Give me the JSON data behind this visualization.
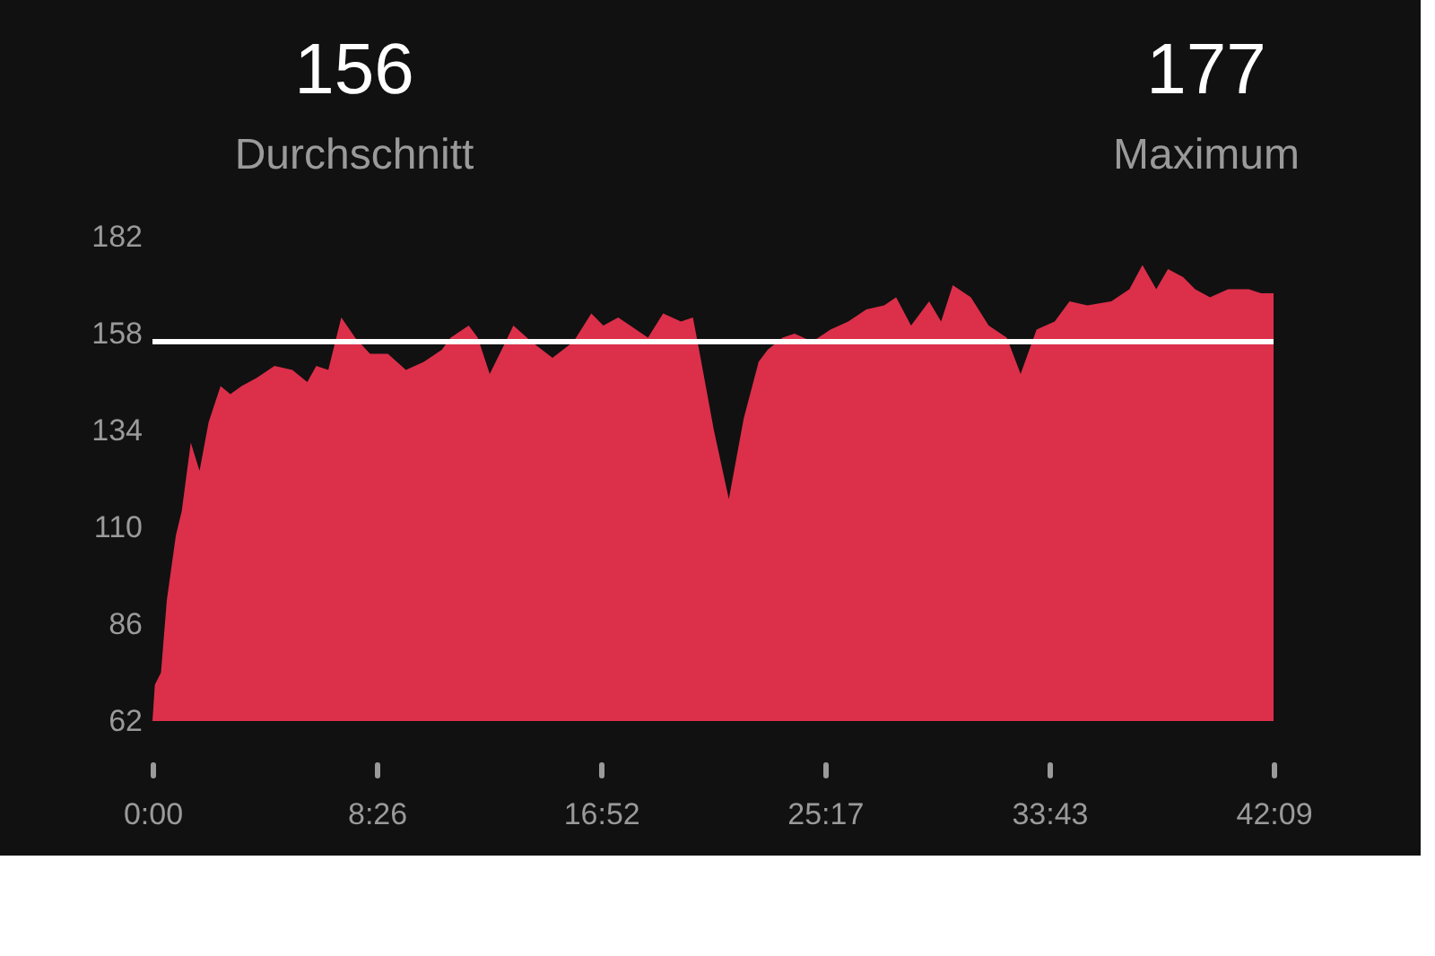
{
  "chart_data": {
    "type": "area",
    "annotations": [
      "156",
      "Durchschnitt",
      "177",
      "Maximum"
    ],
    "x": [
      0,
      0.09,
      0.32,
      0.54,
      0.88,
      1.1,
      1.44,
      1.77,
      2.11,
      2.56,
      2.93,
      3.35,
      3.91,
      4.59,
      5.26,
      5.82,
      6.16,
      6.61,
      7.1,
      7.62,
      8.18,
      8.85,
      9.53,
      10.2,
      10.88,
      11.21,
      11.89,
      12.23,
      12.68,
      13.13,
      13.57,
      14.25,
      15.04,
      15.83,
      16.5,
      16.95,
      17.51,
      17.96,
      18.63,
      19.2,
      19.87,
      20.32,
      20.55,
      21.11,
      21.67,
      22.23,
      22.79,
      23.13,
      23.69,
      24.14,
      24.81,
      25.49,
      26.16,
      26.84,
      27.51,
      27.96,
      28.52,
      29.2,
      29.65,
      30.09,
      30.77,
      31.44,
      32.12,
      32.64,
      33.24,
      33.92,
      34.48,
      35.15,
      36.05,
      36.73,
      37.22,
      37.74,
      38.18,
      38.75,
      39.2,
      39.76,
      40.44,
      41.22,
      41.68,
      42.15
    ],
    "series": [
      {
        "color": "#dc2f4a",
        "values": [
          62,
          71,
          74,
          92,
          108,
          114,
          131,
          124,
          136,
          145,
          143,
          145,
          147,
          150,
          149,
          146,
          150,
          149,
          162,
          157,
          153,
          153,
          149,
          151,
          154,
          157,
          160,
          157,
          148,
          154,
          160,
          156,
          152,
          156,
          163,
          160,
          162,
          160,
          157,
          163,
          161,
          162,
          154,
          134,
          117,
          137,
          151,
          154,
          157,
          158,
          156,
          159,
          161,
          164,
          165,
          167,
          160,
          166,
          161,
          170,
          167,
          160,
          157,
          148,
          159,
          161,
          166,
          165,
          166,
          169,
          175,
          169,
          174,
          172,
          169,
          167,
          169,
          169,
          168,
          168
        ]
      }
    ],
    "xlim": [
      0,
      42.15
    ],
    "ylim": [
      62,
      182
    ],
    "xticks": [
      {
        "value": 0,
        "label": "0:00"
      },
      {
        "value": 8.433,
        "label": "8:26"
      },
      {
        "value": 16.867,
        "label": "16:52"
      },
      {
        "value": 25.283,
        "label": "25:17"
      },
      {
        "value": 33.717,
        "label": "33:43"
      },
      {
        "value": 42.15,
        "label": "42:09"
      }
    ],
    "yticks": [
      62,
      86,
      110,
      134,
      158,
      182
    ],
    "ref_lines": [
      {
        "axis": "y",
        "value": 156,
        "color": "#ffffff"
      }
    ],
    "grid": false
  }
}
